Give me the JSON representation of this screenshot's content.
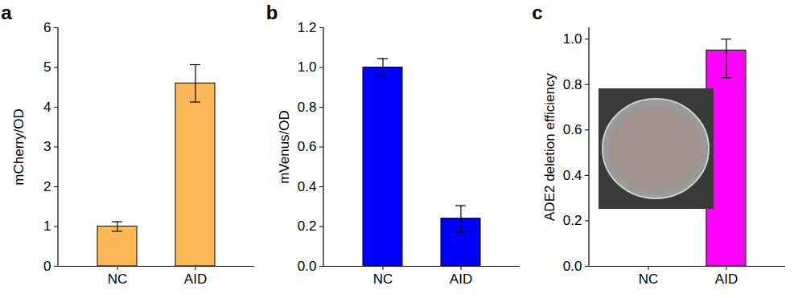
{
  "chart_data": [
    {
      "type": "bar",
      "title": "a",
      "y_label": "mCherry/OD",
      "categories": [
        "NC",
        "AID"
      ],
      "values": [
        1.0,
        4.6
      ],
      "errors": [
        0.12,
        0.47
      ],
      "color": "#FDB756",
      "ylim": [
        0,
        6
      ],
      "yticks": [
        0,
        1,
        2,
        3,
        4,
        5,
        6
      ]
    },
    {
      "type": "bar",
      "title": "b",
      "y_label": "mVenus/OD",
      "categories": [
        "NC",
        "AID"
      ],
      "values": [
        1.0,
        0.24
      ],
      "errors": [
        0.045,
        0.065
      ],
      "color": "#0000FF",
      "ylim": [
        0,
        1.2
      ],
      "yticks": [
        {
          "value": 0,
          "label": "0.0"
        },
        0.2,
        0.4,
        0.6,
        0.8,
        {
          "value": 1,
          "label": "1.0"
        },
        1.2
      ]
    },
    {
      "type": "bar",
      "title": "c",
      "y_label": "ADE2 deletion efficiency",
      "categories": [
        "NC",
        "AID"
      ],
      "values": [
        0,
        0.95
      ],
      "error_low": [
        0,
        0.12
      ],
      "error_high": [
        0,
        0.05
      ],
      "color": "#FF00FF",
      "ylim": [
        0,
        1.05
      ],
      "yticks": [
        {
          "value": 0,
          "label": "0.0"
        },
        0.2,
        0.4,
        0.6,
        0.8,
        {
          "value": 1,
          "label": "1.0"
        }
      ]
    }
  ]
}
